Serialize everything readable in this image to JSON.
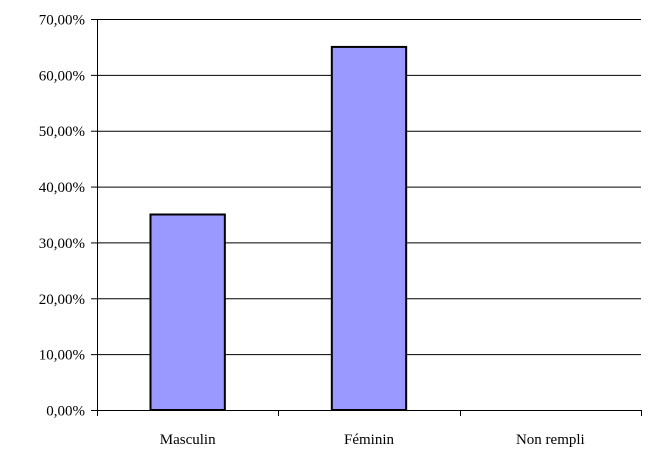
{
  "chart_data": {
    "type": "bar",
    "categories": [
      "Masculin",
      "Féminin",
      "Non rempli"
    ],
    "values": [
      35.0,
      65.0,
      0.0
    ],
    "value_format": "percent_comma_2dp",
    "ylim": [
      0,
      70
    ],
    "yticks": [
      0,
      10,
      20,
      30,
      40,
      50,
      60,
      70
    ],
    "ytick_labels": [
      "0,00%",
      "10,00%",
      "20,00%",
      "30,00%",
      "40,00%",
      "50,00%",
      "60,00%",
      "70,00%"
    ],
    "title": "",
    "xlabel": "",
    "ylabel": "",
    "grid": true,
    "legend": "none",
    "colors": {
      "bar_fill": "#9999ff",
      "bar_stroke": "#000000",
      "grid": "#000000",
      "axis": "#000000"
    }
  }
}
